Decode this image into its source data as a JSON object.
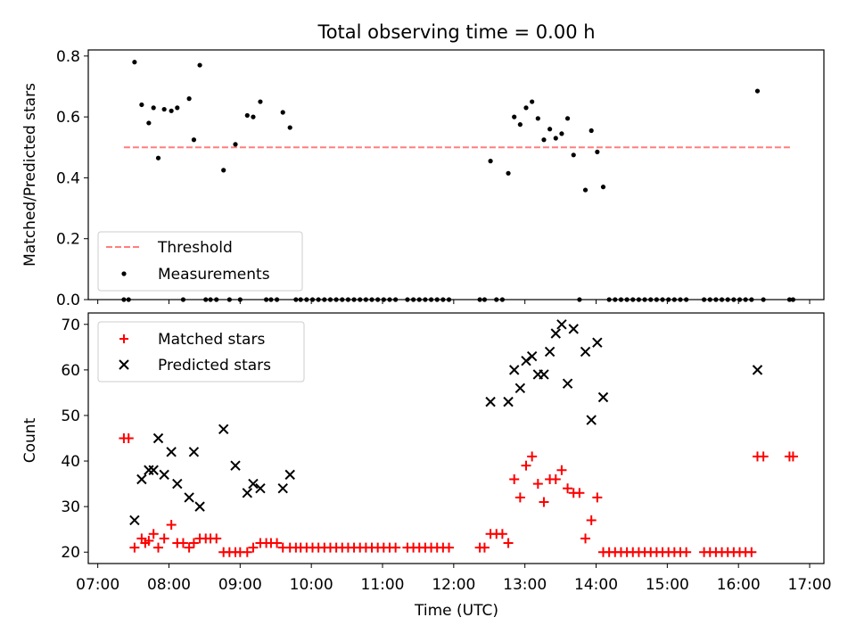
{
  "chart_data": [
    {
      "type": "scatter",
      "title": "Total observing time = 0.00 h",
      "xlabel": "",
      "ylabel": "Matched/Predicted stars",
      "xlim": [
        "06:52",
        "17:12"
      ],
      "ylim": [
        0,
        0.82
      ],
      "yticks": [
        "0.0",
        "0.2",
        "0.4",
        "0.6",
        "0.8"
      ],
      "legend": {
        "location": "lower-left",
        "entries": [
          "Threshold",
          "Measurements"
        ]
      },
      "threshold": {
        "name": "Threshold",
        "y": 0.5,
        "x_range": [
          "07:22",
          "16:45"
        ],
        "color": "#ff7f7f",
        "style": "dashed"
      },
      "series": [
        {
          "name": "Measurements",
          "color": "#000000",
          "points": [
            [
              "07:22",
              0.0
            ],
            [
              "07:26",
              0.0
            ],
            [
              "07:31",
              0.78
            ],
            [
              "07:37",
              0.64
            ],
            [
              "07:43",
              0.58
            ],
            [
              "07:47",
              0.63
            ],
            [
              "07:51",
              0.465
            ],
            [
              "07:56",
              0.625
            ],
            [
              "08:02",
              0.62
            ],
            [
              "08:07",
              0.63
            ],
            [
              "08:12",
              0.0
            ],
            [
              "08:17",
              0.66
            ],
            [
              "08:21",
              0.525
            ],
            [
              "08:26",
              0.77
            ],
            [
              "08:31",
              0.0
            ],
            [
              "08:35",
              0.0
            ],
            [
              "08:40",
              0.0
            ],
            [
              "08:46",
              0.425
            ],
            [
              "08:51",
              0.0
            ],
            [
              "08:56",
              0.51
            ],
            [
              "09:00",
              0.0
            ],
            [
              "09:06",
              0.605
            ],
            [
              "09:11",
              0.6
            ],
            [
              "09:17",
              0.65
            ],
            [
              "09:22",
              0.0
            ],
            [
              "09:26",
              0.0
            ],
            [
              "09:31",
              0.0
            ],
            [
              "09:36",
              0.615
            ],
            [
              "09:42",
              0.565
            ],
            [
              "09:47",
              0.0
            ],
            [
              "09:51",
              0.0
            ],
            [
              "09:56",
              0.0
            ],
            [
              "10:01",
              0.0
            ],
            [
              "10:06",
              0.0
            ],
            [
              "10:11",
              0.0
            ],
            [
              "10:16",
              0.0
            ],
            [
              "10:21",
              0.0
            ],
            [
              "10:26",
              0.0
            ],
            [
              "10:31",
              0.0
            ],
            [
              "10:36",
              0.0
            ],
            [
              "10:41",
              0.0
            ],
            [
              "10:46",
              0.0
            ],
            [
              "10:51",
              0.0
            ],
            [
              "10:56",
              0.0
            ],
            [
              "11:01",
              0.0
            ],
            [
              "11:06",
              0.0
            ],
            [
              "11:11",
              0.0
            ],
            [
              "11:21",
              0.0
            ],
            [
              "11:26",
              0.0
            ],
            [
              "11:31",
              0.0
            ],
            [
              "11:36",
              0.0
            ],
            [
              "11:41",
              0.0
            ],
            [
              "11:46",
              0.0
            ],
            [
              "11:51",
              0.0
            ],
            [
              "11:56",
              0.0
            ],
            [
              "12:22",
              0.0
            ],
            [
              "12:26",
              0.0
            ],
            [
              "12:31",
              0.455
            ],
            [
              "12:36",
              0.0
            ],
            [
              "12:41",
              0.0
            ],
            [
              "12:46",
              0.415
            ],
            [
              "12:51",
              0.6
            ],
            [
              "12:56",
              0.575
            ],
            [
              "13:01",
              0.63
            ],
            [
              "13:06",
              0.65
            ],
            [
              "13:11",
              0.595
            ],
            [
              "13:16",
              0.525
            ],
            [
              "13:21",
              0.56
            ],
            [
              "13:26",
              0.53
            ],
            [
              "13:31",
              0.545
            ],
            [
              "13:36",
              0.595
            ],
            [
              "13:41",
              0.475
            ],
            [
              "13:46",
              0.0
            ],
            [
              "13:51",
              0.36
            ],
            [
              "13:56",
              0.555
            ],
            [
              "14:01",
              0.485
            ],
            [
              "14:06",
              0.37
            ],
            [
              "14:11",
              0.0
            ],
            [
              "14:16",
              0.0
            ],
            [
              "14:21",
              0.0
            ],
            [
              "14:26",
              0.0
            ],
            [
              "14:31",
              0.0
            ],
            [
              "14:36",
              0.0
            ],
            [
              "14:41",
              0.0
            ],
            [
              "14:46",
              0.0
            ],
            [
              "14:51",
              0.0
            ],
            [
              "14:56",
              0.0
            ],
            [
              "15:01",
              0.0
            ],
            [
              "15:06",
              0.0
            ],
            [
              "15:11",
              0.0
            ],
            [
              "15:16",
              0.0
            ],
            [
              "15:31",
              0.0
            ],
            [
              "15:36",
              0.0
            ],
            [
              "15:41",
              0.0
            ],
            [
              "15:46",
              0.0
            ],
            [
              "15:51",
              0.0
            ],
            [
              "15:56",
              0.0
            ],
            [
              "16:01",
              0.0
            ],
            [
              "16:06",
              0.0
            ],
            [
              "16:11",
              0.0
            ],
            [
              "16:16",
              0.685
            ],
            [
              "16:21",
              0.0
            ],
            [
              "16:43",
              0.0
            ],
            [
              "16:46",
              0.0
            ]
          ]
        }
      ]
    },
    {
      "type": "scatter",
      "title": "",
      "xlabel": "Time (UTC)",
      "ylabel": "Count",
      "xlim": [
        "06:52",
        "17:12"
      ],
      "ylim": [
        17.5,
        72.5
      ],
      "xticks": [
        "07:00",
        "08:00",
        "09:00",
        "10:00",
        "11:00",
        "12:00",
        "13:00",
        "14:00",
        "15:00",
        "16:00",
        "17:00"
      ],
      "yticks": [
        "20",
        "30",
        "40",
        "50",
        "60",
        "70"
      ],
      "legend": {
        "location": "upper-left",
        "entries": [
          "Matched stars",
          "Predicted stars"
        ]
      },
      "series": [
        {
          "name": "Matched stars",
          "marker": "plus",
          "color": "#ff0000",
          "points": [
            [
              "07:22",
              45
            ],
            [
              "07:26",
              45
            ],
            [
              "07:31",
              21
            ],
            [
              "07:37",
              23
            ],
            [
              "07:40",
              22
            ],
            [
              "07:43",
              22.5
            ],
            [
              "07:47",
              24
            ],
            [
              "07:51",
              21
            ],
            [
              "07:56",
              23
            ],
            [
              "08:02",
              26
            ],
            [
              "08:07",
              22
            ],
            [
              "08:12",
              22
            ],
            [
              "08:17",
              21
            ],
            [
              "08:21",
              22
            ],
            [
              "08:26",
              23
            ],
            [
              "08:31",
              23
            ],
            [
              "08:35",
              23
            ],
            [
              "08:40",
              23
            ],
            [
              "08:46",
              20
            ],
            [
              "08:51",
              20
            ],
            [
              "08:56",
              20
            ],
            [
              "09:00",
              20
            ],
            [
              "09:06",
              20
            ],
            [
              "09:11",
              21
            ],
            [
              "09:17",
              22
            ],
            [
              "09:22",
              22
            ],
            [
              "09:26",
              22
            ],
            [
              "09:31",
              22
            ],
            [
              "09:36",
              21
            ],
            [
              "09:42",
              21
            ],
            [
              "09:47",
              21
            ],
            [
              "09:51",
              21
            ],
            [
              "09:56",
              21
            ],
            [
              "10:01",
              21
            ],
            [
              "10:06",
              21
            ],
            [
              "10:11",
              21
            ],
            [
              "10:16",
              21
            ],
            [
              "10:21",
              21
            ],
            [
              "10:26",
              21
            ],
            [
              "10:31",
              21
            ],
            [
              "10:36",
              21
            ],
            [
              "10:41",
              21
            ],
            [
              "10:46",
              21
            ],
            [
              "10:51",
              21
            ],
            [
              "10:56",
              21
            ],
            [
              "11:01",
              21
            ],
            [
              "11:06",
              21
            ],
            [
              "11:11",
              21
            ],
            [
              "11:21",
              21
            ],
            [
              "11:26",
              21
            ],
            [
              "11:31",
              21
            ],
            [
              "11:36",
              21
            ],
            [
              "11:41",
              21
            ],
            [
              "11:46",
              21
            ],
            [
              "11:51",
              21
            ],
            [
              "11:56",
              21
            ],
            [
              "12:22",
              21
            ],
            [
              "12:26",
              21
            ],
            [
              "12:31",
              24
            ],
            [
              "12:36",
              24
            ],
            [
              "12:41",
              24
            ],
            [
              "12:46",
              22
            ],
            [
              "12:51",
              36
            ],
            [
              "12:56",
              32
            ],
            [
              "13:01",
              39
            ],
            [
              "13:06",
              41
            ],
            [
              "13:11",
              35
            ],
            [
              "13:16",
              31
            ],
            [
              "13:21",
              36
            ],
            [
              "13:26",
              36
            ],
            [
              "13:31",
              38
            ],
            [
              "13:36",
              34
            ],
            [
              "13:41",
              33
            ],
            [
              "13:46",
              33
            ],
            [
              "13:51",
              23
            ],
            [
              "13:56",
              27
            ],
            [
              "14:01",
              32
            ],
            [
              "14:06",
              20
            ],
            [
              "14:11",
              20
            ],
            [
              "14:16",
              20
            ],
            [
              "14:21",
              20
            ],
            [
              "14:26",
              20
            ],
            [
              "14:31",
              20
            ],
            [
              "14:36",
              20
            ],
            [
              "14:41",
              20
            ],
            [
              "14:46",
              20
            ],
            [
              "14:51",
              20
            ],
            [
              "14:56",
              20
            ],
            [
              "15:01",
              20
            ],
            [
              "15:06",
              20
            ],
            [
              "15:11",
              20
            ],
            [
              "15:16",
              20
            ],
            [
              "15:31",
              20
            ],
            [
              "15:36",
              20
            ],
            [
              "15:41",
              20
            ],
            [
              "15:46",
              20
            ],
            [
              "15:51",
              20
            ],
            [
              "15:56",
              20
            ],
            [
              "16:01",
              20
            ],
            [
              "16:06",
              20
            ],
            [
              "16:11",
              20
            ],
            [
              "16:16",
              41
            ],
            [
              "16:21",
              41
            ],
            [
              "16:43",
              41
            ],
            [
              "16:46",
              41
            ]
          ]
        },
        {
          "name": "Predicted stars",
          "marker": "x",
          "color": "#000000",
          "points": [
            [
              "07:31",
              27
            ],
            [
              "07:37",
              36
            ],
            [
              "07:43",
              38
            ],
            [
              "07:47",
              38
            ],
            [
              "07:51",
              45
            ],
            [
              "07:56",
              37
            ],
            [
              "08:02",
              42
            ],
            [
              "08:07",
              35
            ],
            [
              "08:17",
              32
            ],
            [
              "08:21",
              42
            ],
            [
              "08:26",
              30
            ],
            [
              "08:46",
              47
            ],
            [
              "08:56",
              39
            ],
            [
              "09:06",
              33
            ],
            [
              "09:11",
              35
            ],
            [
              "09:17",
              34
            ],
            [
              "09:36",
              34
            ],
            [
              "09:42",
              37
            ],
            [
              "12:31",
              53
            ],
            [
              "12:46",
              53
            ],
            [
              "12:51",
              60
            ],
            [
              "12:56",
              56
            ],
            [
              "13:01",
              62
            ],
            [
              "13:06",
              63
            ],
            [
              "13:11",
              59
            ],
            [
              "13:16",
              59
            ],
            [
              "13:21",
              64
            ],
            [
              "13:26",
              68
            ],
            [
              "13:31",
              70
            ],
            [
              "13:36",
              57
            ],
            [
              "13:41",
              69
            ],
            [
              "13:51",
              64
            ],
            [
              "13:56",
              49
            ],
            [
              "14:01",
              66
            ],
            [
              "14:06",
              54
            ],
            [
              "16:16",
              60
            ]
          ]
        }
      ]
    }
  ]
}
